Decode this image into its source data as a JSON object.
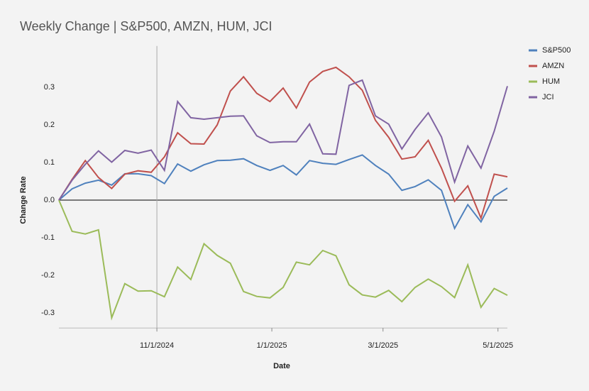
{
  "chart_data": {
    "type": "line",
    "title": "Weekly Change | S&P500, AMZN, HUM, JCI",
    "x_label": "Date",
    "y_label": "Change Rate",
    "x": [
      "2024-09-10",
      "2024-09-17",
      "2024-09-24",
      "2024-10-01",
      "2024-10-08",
      "2024-10-15",
      "2024-10-22",
      "2024-10-29",
      "2024-11-05",
      "2024-11-12",
      "2024-11-19",
      "2024-11-26",
      "2024-12-03",
      "2024-12-10",
      "2024-12-17",
      "2024-12-24",
      "2024-12-31",
      "2025-01-07",
      "2025-01-14",
      "2025-01-21",
      "2025-01-28",
      "2025-02-04",
      "2025-02-11",
      "2025-02-18",
      "2025-02-25",
      "2025-03-04",
      "2025-03-11",
      "2025-03-18",
      "2025-03-25",
      "2025-04-01",
      "2025-04-08",
      "2025-04-15",
      "2025-04-22",
      "2025-04-29",
      "2025-05-06"
    ],
    "series": [
      {
        "name": "S&P500",
        "color": "#4f81bd",
        "values": [
          0,
          0.03,
          0.045,
          0.053,
          0.04,
          0.07,
          0.07,
          0.065,
          0.044,
          0.096,
          0.077,
          0.094,
          0.105,
          0.106,
          0.11,
          0.092,
          0.079,
          0.092,
          0.067,
          0.105,
          0.098,
          0.095,
          0.108,
          0.12,
          0.092,
          0.069,
          0.026,
          0.036,
          0.054,
          0.026,
          -0.075,
          -0.012,
          -0.058,
          0.01,
          0.032
        ]
      },
      {
        "name": "AMZN",
        "color": "#c0504d",
        "values": [
          0,
          0.055,
          0.105,
          0.06,
          0.031,
          0.069,
          0.078,
          0.074,
          0.115,
          0.179,
          0.15,
          0.149,
          0.2,
          0.29,
          0.328,
          0.284,
          0.262,
          0.298,
          0.245,
          0.314,
          0.342,
          0.353,
          0.328,
          0.292,
          0.212,
          0.167,
          0.109,
          0.115,
          0.159,
          0.085,
          -0.003,
          0.038,
          -0.048,
          0.069,
          0.062
        ]
      },
      {
        "name": "HUM",
        "color": "#9bbb59",
        "values": [
          0,
          -0.083,
          -0.09,
          -0.079,
          -0.313,
          -0.222,
          -0.242,
          -0.241,
          -0.257,
          -0.178,
          -0.211,
          -0.116,
          -0.147,
          -0.168,
          -0.243,
          -0.256,
          -0.26,
          -0.232,
          -0.165,
          -0.172,
          -0.134,
          -0.148,
          -0.225,
          -0.252,
          -0.258,
          -0.24,
          -0.27,
          -0.232,
          -0.21,
          -0.23,
          -0.259,
          -0.172,
          -0.285,
          -0.235,
          -0.253
        ]
      },
      {
        "name": "JCI",
        "color": "#8064a2",
        "values": [
          0,
          0.053,
          0.095,
          0.131,
          0.101,
          0.132,
          0.125,
          0.133,
          0.079,
          0.262,
          0.219,
          0.215,
          0.219,
          0.223,
          0.224,
          0.171,
          0.153,
          0.155,
          0.155,
          0.202,
          0.123,
          0.122,
          0.305,
          0.319,
          0.224,
          0.202,
          0.136,
          0.188,
          0.232,
          0.168,
          0.048,
          0.144,
          0.085,
          0.183,
          0.303
        ]
      }
    ],
    "xlim": [
      "2024-09-10",
      "2025-05-06"
    ],
    "xticks": [
      {
        "value": "2024-11-01",
        "label": "11/1/2024"
      },
      {
        "value": "2025-01-01",
        "label": "1/1/2025"
      },
      {
        "value": "2025-03-01",
        "label": "3/1/2025"
      },
      {
        "value": "2025-05-01",
        "label": "5/1/2025"
      }
    ],
    "ylim": [
      -0.34,
      0.41
    ],
    "yticks": [
      -0.3,
      -0.2,
      -0.1,
      {
        "value": 0,
        "label": "0.0"
      },
      0.1,
      0.2,
      0.3
    ],
    "legend": "right"
  }
}
